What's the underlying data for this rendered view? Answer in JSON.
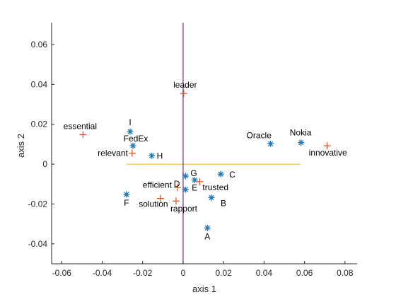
{
  "chart_data": {
    "type": "scatter",
    "xlabel": "axis 1",
    "ylabel": "axis 2",
    "xlim": [
      -0.065,
      0.086
    ],
    "ylim": [
      -0.05,
      0.071
    ],
    "xticks": [
      -0.06,
      -0.04,
      -0.02,
      0,
      0.02,
      0.04,
      0.06,
      0.08
    ],
    "yticks": [
      -0.04,
      -0.02,
      0,
      0.02,
      0.04,
      0.06
    ],
    "xtick_labels": [
      "-0.06",
      "-0.04",
      "-0.02",
      "0",
      "0.02",
      "0.04",
      "0.06",
      "0.08"
    ],
    "ytick_labels": [
      "-0.04",
      "-0.02",
      "0",
      "0.02",
      "0.04",
      "0.06"
    ],
    "grid": false,
    "colors": {
      "entities": "#1f77b4",
      "attributes": "#d95319",
      "vertical_line": "#7e2f8e",
      "horizontal_line": "#edb120",
      "axis": "#262626"
    },
    "reference_lines": {
      "vertical": {
        "x": 0,
        "y_from": -0.05,
        "y_to": 0.071
      },
      "horizontal": {
        "y": 0,
        "x_from": -0.028,
        "x_to": 0.058
      }
    },
    "series": [
      {
        "marker": "asterisk",
        "points": [
          {
            "label": "A",
            "x": 0.012,
            "y": -0.032
          },
          {
            "label": "B",
            "x": 0.014,
            "y": -0.0168
          },
          {
            "label": "C",
            "x": 0.0186,
            "y": -0.005
          },
          {
            "label": "D",
            "x": 0.0012,
            "y": -0.0128
          },
          {
            "label": "E",
            "x": 0.0057,
            "y": -0.008
          },
          {
            "label": "F",
            "x": -0.028,
            "y": -0.0152
          },
          {
            "label": "G",
            "x": 0.0012,
            "y": -0.006
          },
          {
            "label": "H",
            "x": -0.0155,
            "y": 0.0042
          },
          {
            "label": "I",
            "x": -0.0262,
            "y": 0.0163
          },
          {
            "label": "FedEx",
            "x": -0.0248,
            "y": 0.0092
          },
          {
            "label": "Oracle",
            "x": 0.0432,
            "y": 0.0102
          },
          {
            "label": "Nokia",
            "x": 0.0583,
            "y": 0.0108
          }
        ]
      },
      {
        "marker": "plus",
        "points": [
          {
            "label": "leader",
            "x": 0.0003,
            "y": 0.0355
          },
          {
            "label": "essential",
            "x": -0.0495,
            "y": 0.0148
          },
          {
            "label": "relevant",
            "x": -0.0252,
            "y": 0.0055
          },
          {
            "label": "innovative",
            "x": 0.0712,
            "y": 0.0092
          },
          {
            "label": "efficient",
            "x": -0.0028,
            "y": -0.0118
          },
          {
            "label": "trusted",
            "x": 0.0082,
            "y": -0.0088
          },
          {
            "label": "solution",
            "x": -0.0112,
            "y": -0.0172
          },
          {
            "label": "rapport",
            "x": -0.0035,
            "y": -0.0185
          }
        ]
      }
    ]
  }
}
